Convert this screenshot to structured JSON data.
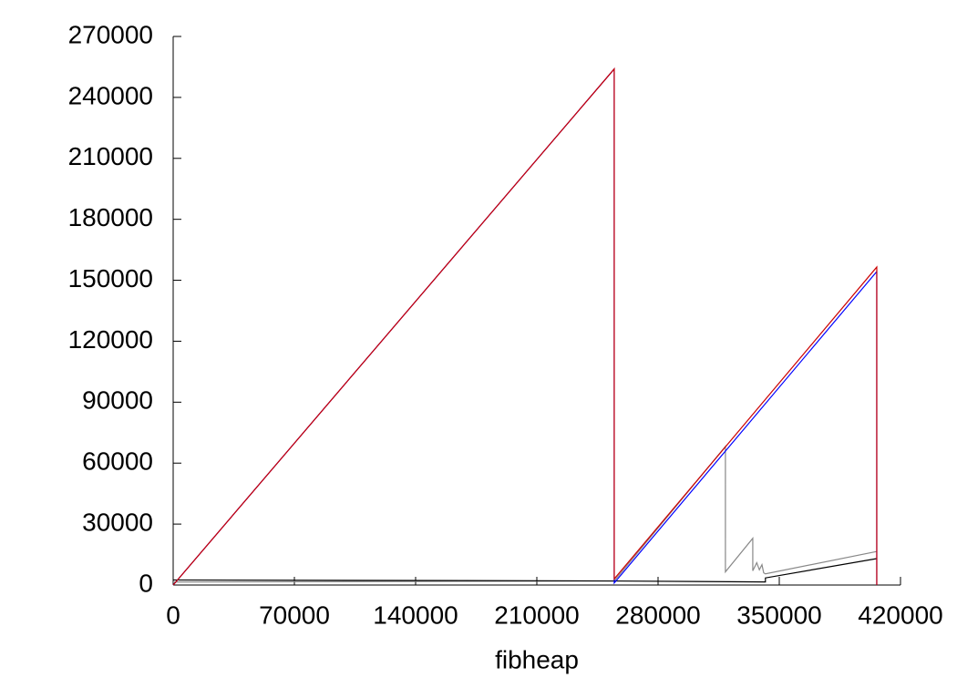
{
  "chart_data": {
    "type": "line",
    "xlabel": "fibheap",
    "xlim": [
      0,
      420000
    ],
    "xticks": [
      0,
      70000,
      140000,
      210000,
      280000,
      350000,
      420000
    ],
    "ylim": [
      0,
      270000
    ],
    "yticks": [
      0,
      30000,
      60000,
      90000,
      120000,
      150000,
      180000,
      210000,
      240000,
      270000
    ],
    "series": [
      {
        "color": "#888888",
        "x": [
          0,
          254700,
          318900,
          318900,
          334700,
          334700,
          337000,
          338500,
          340000,
          341000,
          342000,
          406300
        ],
        "values": [
          1500,
          2000,
          68200,
          6500,
          23000,
          7000,
          11000,
          7500,
          10000,
          6000,
          5500,
          16500
        ]
      },
      {
        "color": "#000000",
        "x": [
          0,
          254700,
          342000,
          342000,
          406300
        ],
        "values": [
          2500,
          2000,
          1500,
          3500,
          13000
        ]
      },
      {
        "color": "#0000ff",
        "x": [
          0,
          254700,
          254700,
          406300,
          406300
        ],
        "values": [
          0,
          254000,
          1000,
          154300,
          0
        ]
      },
      {
        "color": "#cc0000",
        "x": [
          0,
          254700,
          254700,
          406300,
          406300
        ],
        "values": [
          0,
          254000,
          3000,
          156500,
          0
        ]
      }
    ]
  }
}
